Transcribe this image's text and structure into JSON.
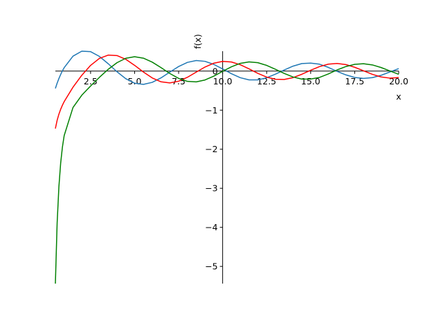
{
  "chart_data": {
    "type": "line",
    "x_label": "x",
    "y_label": "f(x)",
    "x": [
      0.5,
      0.6,
      0.7,
      0.8,
      0.9,
      1,
      1.5,
      2,
      2.5,
      3,
      3.5,
      4,
      4.5,
      5,
      5.5,
      6,
      6.5,
      7,
      7.5,
      8,
      8.5,
      9,
      9.5,
      10,
      10.5,
      11,
      11.5,
      12,
      12.5,
      13,
      13.5,
      14,
      14.5,
      15,
      15.5,
      16,
      16.5,
      17,
      17.5,
      18,
      18.5,
      19,
      19.5,
      20
    ],
    "series": [
      {
        "color": "#1f77b4",
        "values": [
          -0.4445,
          -0.3085,
          -0.1907,
          -0.0868,
          0.0056,
          0.0883,
          0.3824,
          0.5104,
          0.4981,
          0.3769,
          0.189,
          -0.0169,
          -0.1947,
          -0.3085,
          -0.3395,
          -0.2882,
          -0.1732,
          -0.0259,
          0.1173,
          0.2235,
          0.2702,
          0.2499,
          0.1712,
          0.0557,
          -0.066,
          -0.1688,
          -0.2252,
          -0.2252,
          -0.1712,
          -0.0782,
          0.028,
          0.1272,
          0.1939,
          0.2055,
          0.1771,
          0.0958,
          -0.006,
          -0.097,
          -0.162,
          -0.1877,
          -0.1676,
          -0.1075,
          -0.023,
          0.0649
        ]
      },
      {
        "color": "#ff0000",
        "values": [
          -1.4715,
          -1.2604,
          -1.1032,
          -0.9781,
          -0.8731,
          -0.7812,
          -0.4123,
          -0.107,
          0.1459,
          0.3247,
          0.4102,
          0.3979,
          0.301,
          0.1479,
          -0.0238,
          -0.175,
          -0.2741,
          -0.3027,
          -0.2591,
          -0.1581,
          -0.0262,
          0.1043,
          0.2032,
          0.249,
          0.2337,
          0.1637,
          0.0579,
          -0.0571,
          -0.1538,
          -0.2101,
          -0.214,
          -0.1666,
          -0.081,
          0.0211,
          0.1151,
          0.178,
          0.1964,
          0.167,
          0.0982,
          0.008,
          -0.0818,
          -0.15,
          -0.1795,
          -0.1655
        ]
      },
      {
        "color": "#008000",
        "values": [
          -5.4415,
          -3.893,
          -2.961,
          -2.358,
          -1.946,
          -1.6507,
          -0.9321,
          -0.6174,
          -0.3814,
          -0.1604,
          0.0454,
          0.2159,
          0.3285,
          0.3677,
          0.3308,
          0.2299,
          0.0889,
          -0.0606,
          -0.1864,
          -0.263,
          -0.2764,
          -0.2267,
          -0.1284,
          -0.0059,
          0.1105,
          0.1986,
          0.2353,
          0.2157,
          0.1466,
          0.0459,
          -0.0597,
          -0.151,
          -0.2051,
          -0.2027,
          -0.1622,
          -0.0736,
          0.0298,
          0.1166,
          0.1732,
          0.1886,
          0.1588,
          0.0917,
          0.0046,
          -0.0815
        ]
      }
    ],
    "xlim": [
      0.5,
      20
    ],
    "ylim": [
      -5.44,
      0.51
    ],
    "xticks": [
      2.5,
      {
        "value": 5,
        "label": "5.0"
      },
      7.5,
      {
        "value": 10,
        "label": "10.0"
      },
      12.5,
      {
        "value": 15,
        "label": "15.0"
      },
      17.5,
      {
        "value": 20,
        "label": "20.0"
      }
    ],
    "yticks": [
      {
        "value": -5,
        "label": "−5"
      },
      {
        "value": -4,
        "label": "−4"
      },
      {
        "value": -3,
        "label": "−3"
      },
      {
        "value": -2,
        "label": "−2"
      },
      {
        "value": -1,
        "label": "−1"
      },
      0
    ],
    "x_spine_at": 0,
    "y_spine_at": 10
  }
}
